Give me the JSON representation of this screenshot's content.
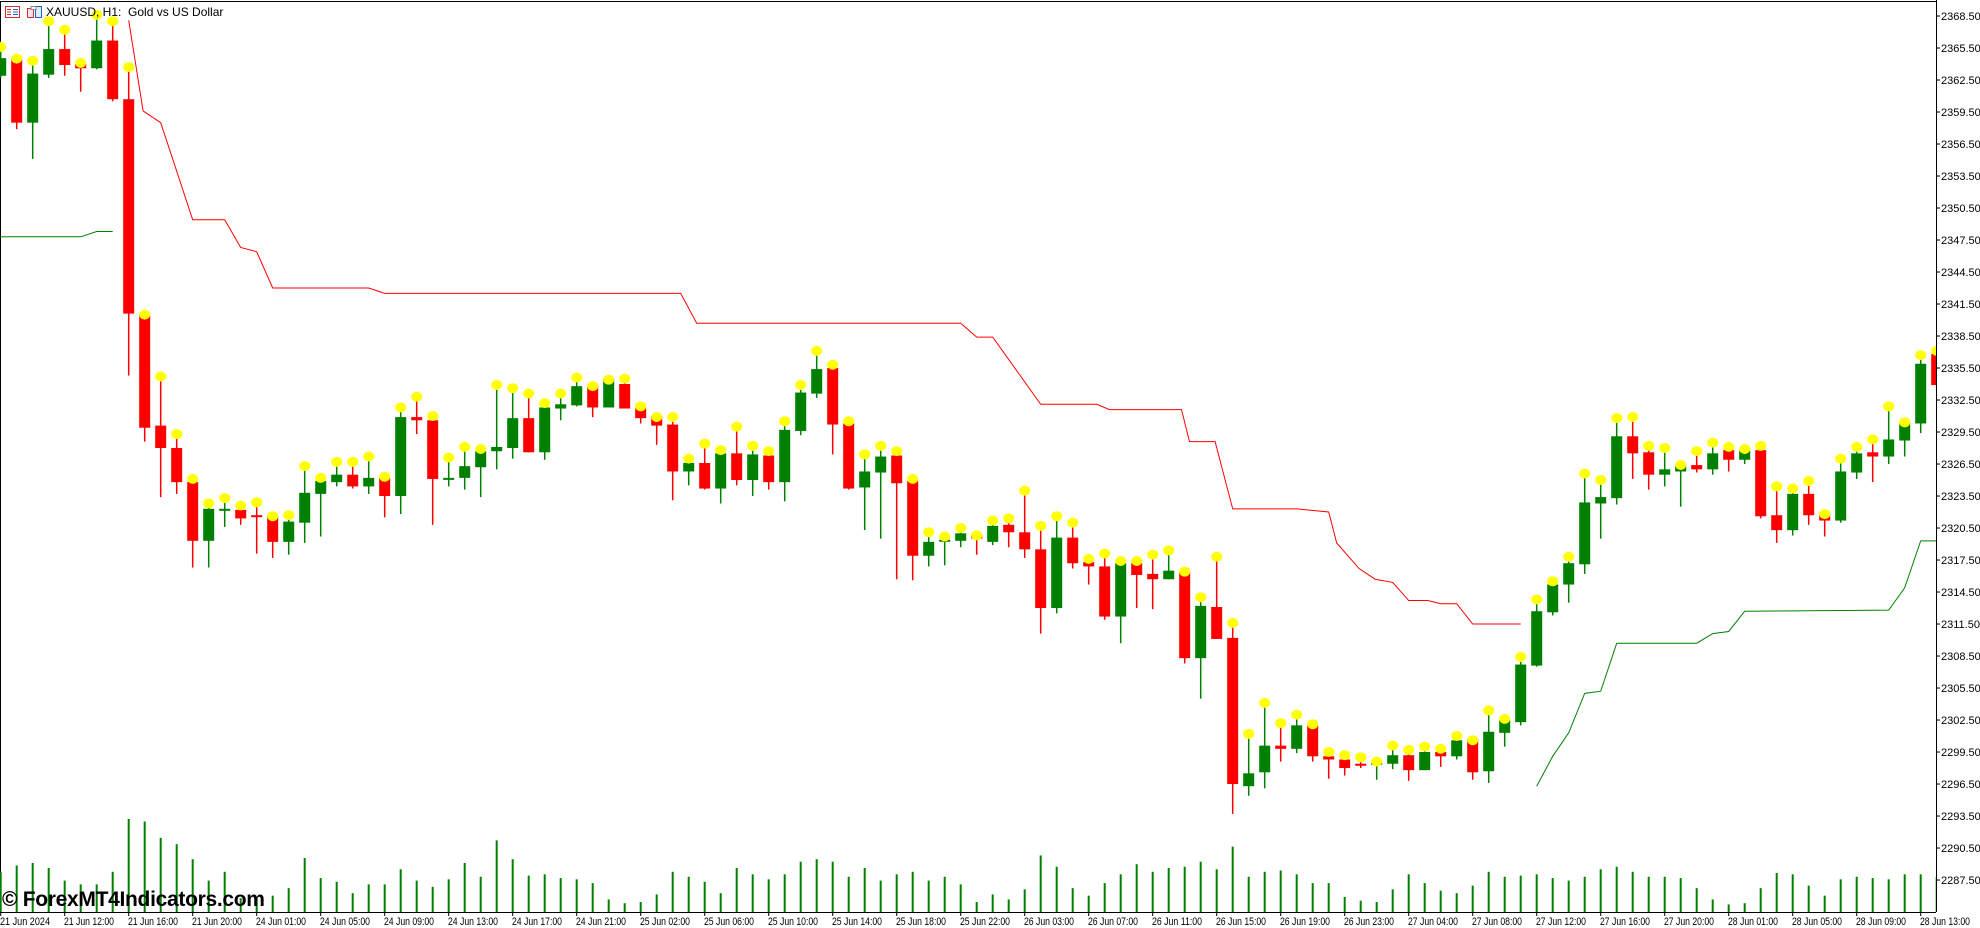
{
  "window": {
    "symbol_label": "XAUUSD, H1:",
    "description": "Gold vs US Dollar",
    "icons": [
      "chart-list-icon",
      "chart-properties-icon"
    ]
  },
  "watermark": "© ForexMT4Indicators.com",
  "colors": {
    "bull": "#008000",
    "bear": "#ff0000",
    "high_marker": "#ffff00",
    "upper_line": "#ff0000",
    "lower_line": "#008000",
    "volume": "#008000",
    "background": "#ffffff"
  },
  "chart_data": {
    "type": "candlestick",
    "title": "XAUUSD, H1:  Gold vs US Dollar",
    "ylim": [
      2286,
      2370
    ],
    "grid": false,
    "y_ticks": [
      "2368.50",
      "2365.50",
      "2362.50",
      "2359.50",
      "2356.50",
      "2353.50",
      "2350.50",
      "2347.50",
      "2344.50",
      "2341.50",
      "2338.50",
      "2335.50",
      "2332.50",
      "2329.50",
      "2326.50",
      "2323.50",
      "2320.50",
      "2317.50",
      "2314.50",
      "2311.50",
      "2308.50",
      "2305.50",
      "2302.50",
      "2299.50",
      "2296.50",
      "2293.50",
      "2290.50",
      "2287.50"
    ],
    "x_ticks": [
      "21 Jun 2024",
      "21 Jun 12:00",
      "21 Jun 16:00",
      "21 Jun 20:00",
      "24 Jun 01:00",
      "24 Jun 05:00",
      "24 Jun 09:00",
      "24 Jun 13:00",
      "24 Jun 17:00",
      "24 Jun 21:00",
      "25 Jun 02:00",
      "25 Jun 06:00",
      "25 Jun 10:00",
      "25 Jun 14:00",
      "25 Jun 18:00",
      "25 Jun 22:00",
      "26 Jun 03:00",
      "26 Jun 07:00",
      "26 Jun 11:00",
      "26 Jun 15:00",
      "26 Jun 19:00",
      "26 Jun 23:00",
      "27 Jun 04:00",
      "27 Jun 08:00",
      "27 Jun 12:00",
      "27 Jun 16:00",
      "27 Jun 20:00",
      "28 Jun 01:00",
      "28 Jun 05:00",
      "28 Jun 09:00",
      "28 Jun 13:00"
    ],
    "candles_ohlc": [
      [
        2362.9,
        2365.7,
        2362.7,
        2364.55
      ],
      [
        2364.5,
        2364.6,
        2357.9,
        2358.5
      ],
      [
        2358.5,
        2364.4,
        2355.1,
        2363.1
      ],
      [
        2363.0,
        2368.1,
        2362.7,
        2365.4
      ],
      [
        2365.4,
        2367.3,
        2362.9,
        2363.9
      ],
      [
        2364.0,
        2364.2,
        2361.4,
        2363.6
      ],
      [
        2363.6,
        2368.7,
        2363.5,
        2366.2
      ],
      [
        2366.2,
        2368.1,
        2360.5,
        2360.7
      ],
      [
        2360.7,
        2363.8,
        2334.8,
        2340.6
      ],
      [
        2340.5,
        2340.6,
        2328.6,
        2329.9
      ],
      [
        2330.1,
        2334.8,
        2323.4,
        2328.0
      ],
      [
        2328.0,
        2329.4,
        2323.7,
        2324.8
      ],
      [
        2324.8,
        2325.2,
        2316.8,
        2319.3
      ],
      [
        2319.3,
        2322.9,
        2316.8,
        2322.3
      ],
      [
        2322.2,
        2323.4,
        2320.6,
        2322.3
      ],
      [
        2322.2,
        2322.7,
        2320.8,
        2321.4
      ],
      [
        2321.7,
        2323.0,
        2318.1,
        2321.6
      ],
      [
        2321.6,
        2321.7,
        2317.7,
        2319.2
      ],
      [
        2319.2,
        2321.8,
        2318.0,
        2321.1
      ],
      [
        2321.0,
        2326.4,
        2319.1,
        2323.8
      ],
      [
        2323.7,
        2325.3,
        2319.7,
        2324.9
      ],
      [
        2324.8,
        2326.8,
        2324.4,
        2325.5
      ],
      [
        2325.5,
        2326.8,
        2324.2,
        2324.4
      ],
      [
        2324.4,
        2327.3,
        2323.7,
        2325.2
      ],
      [
        2325.2,
        2325.4,
        2321.5,
        2323.5
      ],
      [
        2323.5,
        2331.9,
        2321.8,
        2330.9
      ],
      [
        2330.9,
        2332.9,
        2329.3,
        2330.6
      ],
      [
        2330.6,
        2331.1,
        2320.8,
        2325.1
      ],
      [
        2325.1,
        2327.2,
        2324.4,
        2325.2
      ],
      [
        2325.2,
        2328.2,
        2324.1,
        2326.3
      ],
      [
        2326.2,
        2328.0,
        2323.4,
        2327.7
      ],
      [
        2327.7,
        2334.0,
        2326.0,
        2328.1
      ],
      [
        2328.0,
        2333.7,
        2327.0,
        2330.8
      ],
      [
        2330.8,
        2333.2,
        2327.6,
        2327.6
      ],
      [
        2327.6,
        2332.3,
        2326.9,
        2331.8
      ],
      [
        2331.7,
        2333.2,
        2330.6,
        2332.1
      ],
      [
        2332.0,
        2334.7,
        2331.9,
        2333.8
      ],
      [
        2333.8,
        2333.9,
        2330.9,
        2331.8
      ],
      [
        2331.8,
        2334.5,
        2331.8,
        2334.5
      ],
      [
        2334.0,
        2334.6,
        2331.7,
        2331.7
      ],
      [
        2331.8,
        2332.0,
        2330.3,
        2330.8
      ],
      [
        2331.0,
        2331.0,
        2328.3,
        2330.1
      ],
      [
        2330.2,
        2331.0,
        2323.1,
        2325.8
      ],
      [
        2325.8,
        2327.1,
        2324.5,
        2326.6
      ],
      [
        2326.6,
        2328.5,
        2324.1,
        2324.2
      ],
      [
        2324.2,
        2327.9,
        2322.8,
        2327.5
      ],
      [
        2327.5,
        2330.1,
        2324.5,
        2325.0
      ],
      [
        2325.0,
        2328.3,
        2323.5,
        2327.4
      ],
      [
        2327.3,
        2327.8,
        2324.1,
        2324.8
      ],
      [
        2324.8,
        2330.6,
        2323.0,
        2329.7
      ],
      [
        2329.6,
        2334.0,
        2329.2,
        2333.2
      ],
      [
        2333.1,
        2337.2,
        2332.7,
        2335.4
      ],
      [
        2335.5,
        2335.9,
        2327.4,
        2330.2
      ],
      [
        2330.3,
        2330.6,
        2324.1,
        2324.2
      ],
      [
        2324.3,
        2327.5,
        2320.3,
        2325.8
      ],
      [
        2325.7,
        2328.3,
        2319.5,
        2327.2
      ],
      [
        2327.3,
        2327.8,
        2315.7,
        2324.7
      ],
      [
        2324.9,
        2325.2,
        2315.6,
        2317.9
      ],
      [
        2317.9,
        2320.2,
        2316.9,
        2319.2
      ],
      [
        2319.3,
        2319.8,
        2317.0,
        2319.4
      ],
      [
        2319.3,
        2320.6,
        2318.7,
        2320.0
      ],
      [
        2319.9,
        2319.9,
        2318.0,
        2319.5
      ],
      [
        2319.2,
        2321.3,
        2318.9,
        2320.7
      ],
      [
        2320.8,
        2321.5,
        2318.7,
        2320.1
      ],
      [
        2320.1,
        2324.1,
        2317.7,
        2318.5
      ],
      [
        2318.5,
        2320.8,
        2310.6,
        2313.0
      ],
      [
        2313.0,
        2321.7,
        2312.5,
        2319.6
      ],
      [
        2319.6,
        2321.1,
        2316.7,
        2317.2
      ],
      [
        2317.3,
        2317.7,
        2315.2,
        2316.9
      ],
      [
        2316.9,
        2318.2,
        2311.9,
        2312.2
      ],
      [
        2312.2,
        2317.5,
        2309.7,
        2317.2
      ],
      [
        2317.2,
        2317.5,
        2313.0,
        2316.1
      ],
      [
        2316.2,
        2318.1,
        2312.9,
        2315.7
      ],
      [
        2315.7,
        2318.5,
        2315.7,
        2316.5
      ],
      [
        2316.4,
        2316.5,
        2307.8,
        2308.3
      ],
      [
        2308.3,
        2314.1,
        2304.5,
        2313.2
      ],
      [
        2313.1,
        2317.9,
        2310.1,
        2310.1
      ],
      [
        2310.2,
        2311.7,
        2293.7,
        2296.5
      ],
      [
        2296.3,
        2301.3,
        2295.4,
        2297.5
      ],
      [
        2297.6,
        2304.2,
        2296.1,
        2300.1
      ],
      [
        2300.1,
        2302.3,
        2298.6,
        2299.8
      ],
      [
        2299.8,
        2303.1,
        2299.4,
        2302.0
      ],
      [
        2302.0,
        2302.2,
        2298.6,
        2299.1
      ],
      [
        2299.1,
        2299.6,
        2297.0,
        2298.8
      ],
      [
        2298.8,
        2299.3,
        2297.3,
        2298.0
      ],
      [
        2298.4,
        2299.1,
        2298.0,
        2298.3
      ],
      [
        2298.3,
        2298.7,
        2296.9,
        2298.5
      ],
      [
        2298.4,
        2300.2,
        2297.9,
        2299.2
      ],
      [
        2299.2,
        2299.8,
        2296.8,
        2297.8
      ],
      [
        2297.8,
        2300.1,
        2297.8,
        2299.5
      ],
      [
        2299.5,
        2299.9,
        2298.1,
        2299.1
      ],
      [
        2299.1,
        2301.1,
        2298.8,
        2300.6
      ],
      [
        2300.7,
        2300.7,
        2296.9,
        2297.6
      ],
      [
        2297.7,
        2303.5,
        2296.6,
        2301.4
      ],
      [
        2301.3,
        2302.7,
        2300.0,
        2302.5
      ],
      [
        2302.3,
        2308.5,
        2302.0,
        2307.7
      ],
      [
        2307.6,
        2313.9,
        2307.5,
        2312.7
      ],
      [
        2312.6,
        2315.6,
        2312.3,
        2315.2
      ],
      [
        2315.2,
        2317.9,
        2313.5,
        2317.2
      ],
      [
        2317.1,
        2325.7,
        2316.2,
        2322.9
      ],
      [
        2322.8,
        2325.1,
        2319.5,
        2323.4
      ],
      [
        2323.3,
        2330.9,
        2322.7,
        2329.1
      ],
      [
        2329.1,
        2331.0,
        2325.1,
        2327.5
      ],
      [
        2327.6,
        2328.3,
        2324.1,
        2325.5
      ],
      [
        2325.5,
        2328.1,
        2324.4,
        2326.0
      ],
      [
        2325.8,
        2326.5,
        2322.5,
        2326.4
      ],
      [
        2326.4,
        2327.8,
        2325.7,
        2326.0
      ],
      [
        2326.0,
        2328.6,
        2325.5,
        2327.5
      ],
      [
        2327.8,
        2328.2,
        2325.8,
        2326.9
      ],
      [
        2326.9,
        2328.0,
        2326.5,
        2327.8
      ],
      [
        2327.8,
        2328.3,
        2321.4,
        2321.6
      ],
      [
        2321.7,
        2324.5,
        2319.1,
        2320.3
      ],
      [
        2320.3,
        2324.3,
        2319.8,
        2323.7
      ],
      [
        2323.7,
        2325.0,
        2320.8,
        2321.7
      ],
      [
        2321.8,
        2321.9,
        2319.7,
        2321.2
      ],
      [
        2321.2,
        2327.1,
        2321.0,
        2325.8
      ],
      [
        2325.7,
        2328.2,
        2325.1,
        2327.5
      ],
      [
        2327.6,
        2328.9,
        2324.8,
        2327.2
      ],
      [
        2327.2,
        2332.0,
        2326.5,
        2328.8
      ],
      [
        2328.7,
        2330.5,
        2327.2,
        2330.4
      ],
      [
        2330.3,
        2336.8,
        2329.4,
        2335.9
      ],
      [
        2336.8,
        2337.2,
        2333.3,
        2333.9
      ]
    ],
    "volume_relative": [
      32,
      37,
      39,
      35,
      25,
      22,
      22,
      32,
      74,
      72,
      59,
      54,
      42,
      25,
      32,
      11,
      12,
      13,
      19,
      43,
      27,
      24,
      15,
      22,
      22,
      34,
      25,
      20,
      26,
      39,
      28,
      57,
      42,
      29,
      30,
      27,
      26,
      23,
      10,
      7,
      8,
      14,
      32,
      28,
      24,
      15,
      35,
      30,
      26,
      30,
      40,
      42,
      40,
      28,
      35,
      25,
      30,
      32,
      25,
      28,
      22,
      8,
      14,
      10,
      18,
      45,
      36,
      19,
      13,
      23,
      30,
      38,
      32,
      35,
      36,
      40,
      34,
      52,
      28,
      32,
      33,
      30,
      23,
      23,
      12,
      9,
      8,
      18,
      30,
      23,
      17,
      15,
      21,
      32,
      28,
      29,
      30,
      27,
      25,
      28,
      34,
      36,
      32,
      28,
      28,
      27,
      19,
      10,
      6,
      7,
      19,
      31,
      30,
      21,
      13,
      26,
      28,
      27,
      26,
      30,
      30,
      28
    ],
    "upper_line_bar_price": [
      [
        8,
        2368.1
      ],
      [
        8.9,
        2359.6
      ],
      [
        10,
        2358.5
      ],
      [
        12,
        2349.4
      ],
      [
        14,
        2349.4
      ],
      [
        15,
        2346.8
      ],
      [
        16,
        2346.4
      ],
      [
        17,
        2343.0
      ],
      [
        23,
        2343.0
      ],
      [
        24,
        2342.5
      ],
      [
        42.5,
        2342.5
      ],
      [
        43.5,
        2339.7
      ],
      [
        60,
        2339.7
      ],
      [
        61,
        2338.4
      ],
      [
        62,
        2338.4
      ],
      [
        65,
        2332.1
      ],
      [
        68.5,
        2332.1
      ],
      [
        69.3,
        2331.6
      ],
      [
        73.8,
        2331.6
      ],
      [
        74.3,
        2328.6
      ],
      [
        75.9,
        2328.6
      ],
      [
        77,
        2322.3
      ],
      [
        81,
        2322.3
      ],
      [
        83,
        2322.0
      ],
      [
        83.5,
        2319.1
      ],
      [
        84.9,
        2316.7
      ],
      [
        85.9,
        2315.7
      ],
      [
        87,
        2315.4
      ],
      [
        88,
        2313.7
      ],
      [
        89.2,
        2313.7
      ],
      [
        90,
        2313.4
      ],
      [
        91,
        2313.4
      ],
      [
        92,
        2311.5
      ],
      [
        95,
        2311.5
      ]
    ],
    "lower_line_segments": [
      [
        [
          0,
          2347.8
        ],
        [
          5,
          2347.8
        ],
        [
          6,
          2348.3
        ],
        [
          7,
          2348.3
        ]
      ],
      [
        [
          96,
          2296.3
        ],
        [
          97,
          2299.1
        ],
        [
          98,
          2301.3
        ],
        [
          99,
          2305.0
        ],
        [
          100,
          2305.2
        ],
        [
          101,
          2309.7
        ],
        [
          106,
          2309.7
        ],
        [
          107,
          2310.6
        ],
        [
          108,
          2310.8
        ],
        [
          109,
          2312.7
        ],
        [
          118,
          2312.8
        ],
        [
          119,
          2314.9
        ],
        [
          120,
          2319.3
        ],
        [
          121,
          2319.3
        ]
      ]
    ]
  }
}
